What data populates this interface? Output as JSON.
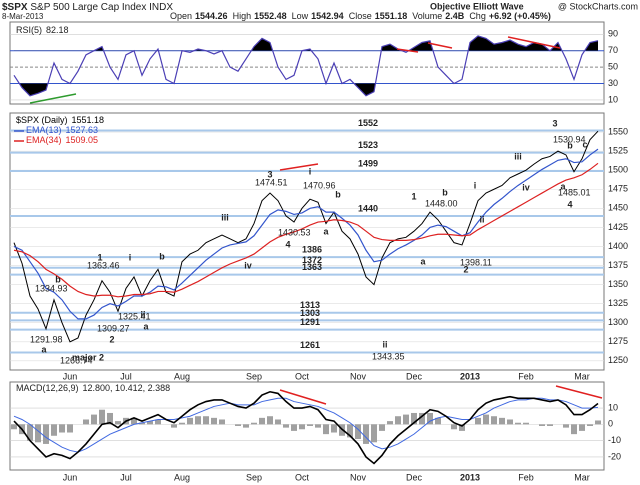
{
  "header": {
    "symbol": "$SPX",
    "name": "S&P 500 Large Cap Index",
    "exchange": "INDX",
    "brand": "Objective Elliott Wave",
    "source": "@ StockCharts.com",
    "date": "8-Mar-2013",
    "quote": [
      {
        "label": "Open",
        "value": 1544.26
      },
      {
        "label": "High",
        "value": 1552.48
      },
      {
        "label": "Low",
        "value": 1542.94
      },
      {
        "label": "Close",
        "value": 1551.18
      },
      {
        "label": "Volume",
        "value": "2.4B"
      },
      {
        "label": "Chg",
        "value": "+6.92 (+0.45%)"
      }
    ]
  },
  "chart_data": [
    {
      "type": "rsi",
      "series": [
        {
          "name": "RSI(5)",
          "color": "#4b3fb5",
          "values": [
            40,
            25,
            15,
            18,
            22,
            55,
            35,
            30,
            45,
            65,
            70,
            75,
            50,
            35,
            65,
            70,
            40,
            60,
            72,
            35,
            30,
            70,
            68,
            72,
            70,
            66,
            70,
            50,
            45,
            60,
            75,
            85,
            80,
            50,
            35,
            40,
            70,
            72,
            60,
            30,
            55,
            30,
            35,
            25,
            15,
            20,
            75,
            78,
            72,
            68,
            74,
            80,
            82,
            50,
            40,
            30,
            35,
            80,
            88,
            85,
            78,
            80,
            83,
            78,
            75,
            80,
            78,
            70,
            80,
            60,
            35,
            65,
            80,
            82.18
          ]
        }
      ],
      "ylim": [
        5,
        105
      ],
      "yticks": [
        90,
        70,
        50,
        30,
        10
      ],
      "fill_above": 70,
      "fill_below": 30,
      "fill_color": "#000000"
    },
    {
      "type": "line",
      "categories": [
        null,
        null,
        null,
        null,
        null,
        null,
        null,
        "Jun",
        null,
        null,
        null,
        null,
        null,
        null,
        "Jul",
        null,
        null,
        null,
        null,
        null,
        null,
        "Aug",
        null,
        null,
        null,
        null,
        null,
        null,
        null,
        null,
        "Sep",
        null,
        null,
        null,
        null,
        null,
        "Oct",
        null,
        null,
        null,
        null,
        null,
        null,
        "Nov",
        null,
        null,
        null,
        null,
        null,
        null,
        "Dec",
        null,
        null,
        null,
        null,
        null,
        null,
        "2013",
        null,
        null,
        null,
        null,
        null,
        null,
        "Feb",
        null,
        null,
        null,
        null,
        null,
        null,
        "Mar",
        null,
        null
      ],
      "series": [
        {
          "name": "$SPX (Daily)",
          "color": "#000000",
          "values": [
            1405,
            1378,
            1335,
            1318,
            1292,
            1330,
            1300,
            1275,
            1280,
            1310,
            1330,
            1355,
            1340,
            1315,
            1345,
            1360,
            1335,
            1355,
            1370,
            1340,
            1335,
            1380,
            1390,
            1395,
            1405,
            1410,
            1415,
            1410,
            1405,
            1410,
            1430,
            1460,
            1470,
            1460,
            1440,
            1432,
            1450,
            1462,
            1458,
            1430,
            1445,
            1420,
            1410,
            1390,
            1360,
            1350,
            1385,
            1405,
            1410,
            1412,
            1420,
            1430,
            1445,
            1435,
            1420,
            1405,
            1402,
            1430,
            1460,
            1470,
            1475,
            1480,
            1490,
            1495,
            1500,
            1508,
            1515,
            1518,
            1525,
            1520,
            1498,
            1515,
            1540,
            1551.18
          ]
        },
        {
          "name": "EMA(13)",
          "color": "#3355cc",
          "values": [
            1400,
            1395,
            1380,
            1365,
            1345,
            1340,
            1330,
            1315,
            1305,
            1305,
            1310,
            1320,
            1325,
            1322,
            1328,
            1335,
            1335,
            1340,
            1348,
            1347,
            1343,
            1352,
            1362,
            1372,
            1382,
            1390,
            1398,
            1402,
            1404,
            1406,
            1414,
            1428,
            1442,
            1448,
            1446,
            1442,
            1444,
            1450,
            1452,
            1445,
            1445,
            1437,
            1428,
            1415,
            1395,
            1380,
            1382,
            1390,
            1397,
            1402,
            1408,
            1415,
            1425,
            1428,
            1426,
            1420,
            1414,
            1418,
            1432,
            1445,
            1455,
            1463,
            1472,
            1480,
            1487,
            1494,
            1501,
            1507,
            1513,
            1515,
            1510,
            1511,
            1520,
            1527.63
          ]
        },
        {
          "name": "EMA(34)",
          "color": "#dd2222",
          "values": [
            1395,
            1393,
            1388,
            1380,
            1370,
            1364,
            1357,
            1348,
            1341,
            1337,
            1335,
            1336,
            1336,
            1334,
            1335,
            1337,
            1337,
            1338,
            1341,
            1341,
            1340,
            1344,
            1349,
            1354,
            1360,
            1366,
            1372,
            1377,
            1381,
            1385,
            1390,
            1398,
            1406,
            1412,
            1416,
            1419,
            1423,
            1428,
            1432,
            1433,
            1435,
            1434,
            1432,
            1428,
            1420,
            1412,
            1409,
            1408,
            1408,
            1408,
            1409,
            1411,
            1414,
            1416,
            1416,
            1415,
            1414,
            1415,
            1422,
            1428,
            1434,
            1440,
            1446,
            1452,
            1458,
            1464,
            1470,
            1476,
            1482,
            1487,
            1490,
            1494,
            1501,
            1509.05
          ]
        }
      ],
      "ylim": [
        1238,
        1575
      ],
      "yticks": [
        1250,
        1275,
        1300,
        1325,
        1350,
        1375,
        1400,
        1425,
        1450,
        1475,
        1500,
        1525,
        1550
      ],
      "grid": true,
      "levels": [
        1552,
        1523,
        1499,
        1440,
        1386,
        1372,
        1363,
        1313,
        1303,
        1291,
        1261
      ],
      "level_color": "#a8c8ea",
      "annotations": [
        {
          "text": "a",
          "color": "#8b1a1a"
        },
        {
          "text": "b",
          "color": "#1f2a80"
        },
        {
          "text": "1",
          "color": "#1f2a80"
        },
        {
          "text": "2",
          "color": "#1f2a80"
        },
        {
          "text": "i",
          "color": "#2e8b57"
        },
        {
          "text": "ii",
          "color": "#2e8b57"
        },
        {
          "text": "a",
          "color": "#e02020"
        },
        {
          "text": "b",
          "color": "#e02020"
        },
        {
          "text": "major 2",
          "color": "#000000"
        },
        {
          "text": "iii",
          "color": "#2e8b57"
        },
        {
          "text": "iv",
          "color": "#2e8b57"
        },
        {
          "text": "3",
          "color": "#1f2a80"
        },
        {
          "text": "4",
          "color": "#1f2a80"
        },
        {
          "text": "a",
          "color": "#1f2a80"
        },
        {
          "text": "b",
          "color": "#1f2a80"
        },
        {
          "text": "i",
          "color": "#8b1a1a"
        },
        {
          "text": "ii",
          "color": "#8b1a1a"
        },
        {
          "text": "1",
          "color": "#1f2a80"
        },
        {
          "text": "a",
          "color": "#2e8b57"
        },
        {
          "text": "b",
          "color": "#2e8b57"
        },
        {
          "text": "2",
          "color": "#1f2a80"
        },
        {
          "text": "i",
          "color": "#2e8b57"
        },
        {
          "text": "ii",
          "color": "#2e8b57"
        },
        {
          "text": "iii",
          "color": "#2e8b57"
        },
        {
          "text": "iv",
          "color": "#2e8b57"
        },
        {
          "text": "3",
          "color": "#1f2a80"
        },
        {
          "text": "a",
          "color": "#2e8b57"
        },
        {
          "text": "b",
          "color": "#2e8b57"
        },
        {
          "text": "c",
          "color": "#2e8b57"
        },
        {
          "text": "4",
          "color": "#1f2a80"
        }
      ],
      "price_labels": [
        1334.93,
        1291.98,
        1266.74,
        1363.46,
        1309.27,
        1325.41,
        1474.51,
        1470.96,
        1430.53,
        1343.35,
        {
          "value": 1448,
          "label": "1448.00"
        },
        1398.11,
        1530.94,
        1485.01
      ]
    },
    {
      "type": "macd",
      "title": "MACD(12,26,9)",
      "legend_values": "12.800, 10.412, 2.388",
      "categories": [
        null,
        null,
        null,
        null,
        null,
        null,
        null,
        "Jun",
        null,
        null,
        null,
        null,
        null,
        null,
        "Jul",
        null,
        null,
        null,
        null,
        null,
        null,
        "Aug",
        null,
        null,
        null,
        null,
        null,
        null,
        null,
        null,
        "Sep",
        null,
        null,
        null,
        null,
        null,
        "Oct",
        null,
        null,
        null,
        null,
        null,
        null,
        "Nov",
        null,
        null,
        null,
        null,
        null,
        null,
        "Dec",
        null,
        null,
        null,
        null,
        null,
        null,
        "2013",
        null,
        null,
        null,
        null,
        null,
        null,
        "Feb",
        null,
        null,
        null,
        null,
        null,
        null,
        "Mar",
        null,
        null
      ],
      "series": [
        {
          "color": "#000000",
          "values": [
            2,
            -3,
            -10,
            -15,
            -20,
            -18,
            -19,
            -21,
            -17,
            -12,
            -6,
            0,
            1,
            -2,
            2,
            4,
            2,
            4,
            6,
            3,
            1,
            5,
            9,
            12,
            14,
            15,
            15,
            13,
            11,
            10,
            13,
            18,
            20,
            19,
            14,
            10,
            10,
            11,
            9,
            3,
            2,
            -3,
            -7,
            -12,
            -20,
            -24,
            -19,
            -12,
            -7,
            -3,
            1,
            5,
            9,
            8,
            5,
            1,
            -1,
            3,
            9,
            13,
            15,
            16,
            17,
            16,
            16,
            16,
            15,
            14,
            15,
            12,
            6,
            6,
            9,
            12.8
          ]
        },
        {
          "color": "#4169e1",
          "values": [
            5,
            3,
            0,
            -4,
            -8,
            -11,
            -14,
            -16,
            -17,
            -15,
            -12,
            -9,
            -6,
            -4,
            -2,
            0,
            1,
            2,
            3,
            3,
            3,
            4,
            5,
            7,
            9,
            11,
            12,
            13,
            12,
            12,
            12,
            14,
            15,
            16,
            16,
            14,
            13,
            12,
            11,
            9,
            7,
            4,
            1,
            -3,
            -8,
            -13,
            -15,
            -14,
            -12,
            -9,
            -6,
            -2,
            2,
            4,
            5,
            4,
            3,
            3,
            5,
            7,
            10,
            12,
            14,
            15,
            15,
            16,
            16,
            15,
            15,
            14,
            12,
            10,
            10,
            10.412
          ]
        },
        {
          "color": "#a0a0a0",
          "values": [
            -3,
            -6,
            -10,
            -11,
            -12,
            -7,
            -5,
            -5,
            0,
            3,
            6,
            9,
            7,
            2,
            4,
            4,
            1,
            2,
            3,
            0,
            -2,
            1,
            4,
            5,
            5,
            4,
            3,
            0,
            -1,
            -2,
            1,
            4,
            5,
            3,
            -2,
            -4,
            -3,
            -1,
            -2,
            -6,
            -5,
            -7,
            -8,
            -9,
            -12,
            -11,
            -4,
            2,
            5,
            6,
            7,
            7,
            7,
            4,
            0,
            -3,
            -4,
            0,
            4,
            6,
            5,
            4,
            3,
            1,
            1,
            0,
            -1,
            -1,
            0,
            -2,
            -6,
            -4,
            -1,
            2.388
          ]
        }
      ],
      "ylim": [
        -28,
        26
      ],
      "yticks": [
        10,
        0,
        -10,
        -20
      ]
    }
  ]
}
